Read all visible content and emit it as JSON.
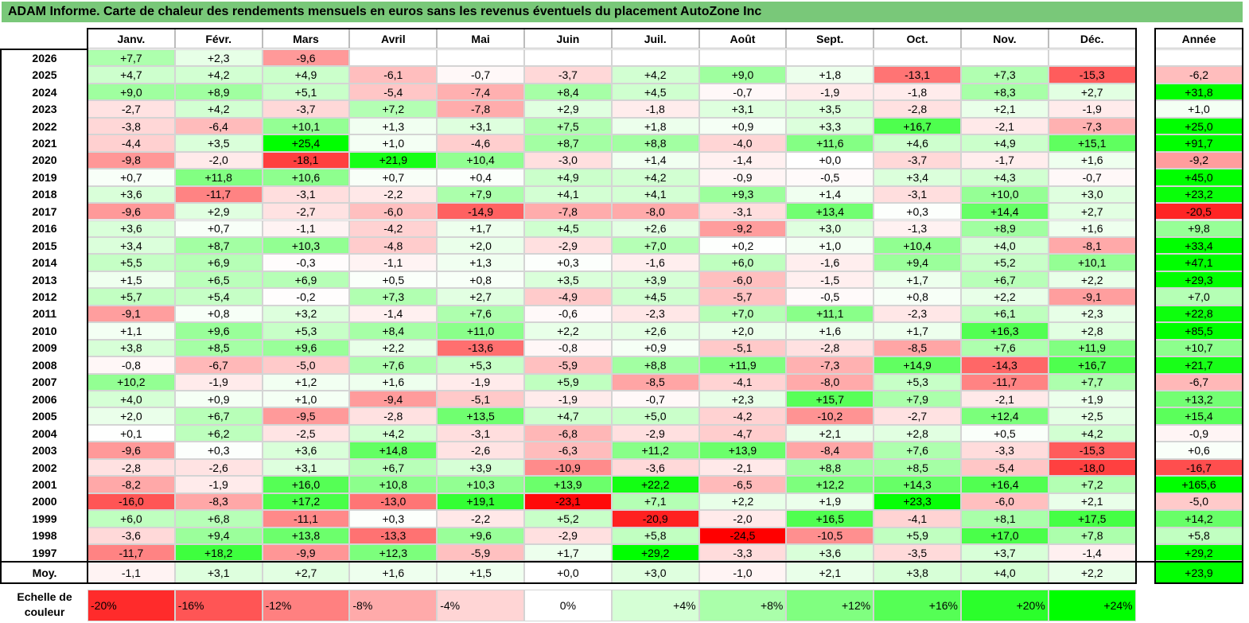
{
  "title": "ADAM Informe. Carte de chaleur des rendements mensuels en euros sans les revenus éventuels du placement AutoZone Inc",
  "chart_data": {
    "type": "heatmap",
    "title": "ADAM Informe. Carte de chaleur des rendements mensuels en euros sans les revenus éventuels du placement AutoZone Inc",
    "columns": [
      "Janv.",
      "Févr.",
      "Mars",
      "Avril",
      "Mai",
      "Juin",
      "Juil.",
      "Août",
      "Sept.",
      "Oct.",
      "Nov.",
      "Déc."
    ],
    "year_header": "Année",
    "rows": [
      {
        "label": "2026",
        "values": [
          "+7,7",
          "+2,3",
          "-9,6",
          "",
          "",
          "",
          "",
          "",
          "",
          "",
          "",
          ""
        ],
        "year": ""
      },
      {
        "label": "2025",
        "values": [
          "+4,7",
          "+4,2",
          "+4,9",
          "-6,1",
          "-0,7",
          "-3,7",
          "+4,2",
          "+9,0",
          "+1,8",
          "-13,1",
          "+7,3",
          "-15,3"
        ],
        "year": "-6,2"
      },
      {
        "label": "2024",
        "values": [
          "+9,0",
          "+8,9",
          "+5,1",
          "-5,4",
          "-7,4",
          "+8,4",
          "+4,5",
          "-0,7",
          "-1,9",
          "-1,8",
          "+8,3",
          "+2,7"
        ],
        "year": "+31,8"
      },
      {
        "label": "2023",
        "values": [
          "-2,7",
          "+4,2",
          "-3,7",
          "+7,2",
          "-7,8",
          "+2,9",
          "-1,8",
          "+3,1",
          "+3,5",
          "-2,8",
          "+2,1",
          "-1,9"
        ],
        "year": "+1,0"
      },
      {
        "label": "2022",
        "values": [
          "-3,8",
          "-6,4",
          "+10,1",
          "+1,3",
          "+3,1",
          "+7,5",
          "+1,8",
          "+0,9",
          "+3,3",
          "+16,7",
          "-2,1",
          "-7,3"
        ],
        "year": "+25,0"
      },
      {
        "label": "2021",
        "values": [
          "-4,4",
          "+3,5",
          "+25,4",
          "+1,0",
          "-4,6",
          "+8,7",
          "+8,8",
          "-4,0",
          "+11,6",
          "+4,6",
          "+4,9",
          "+15,1"
        ],
        "year": "+91,7"
      },
      {
        "label": "2020",
        "values": [
          "-9,8",
          "-2,0",
          "-18,1",
          "+21,9",
          "+10,4",
          "-3,0",
          "+1,4",
          "-1,4",
          "+0,0",
          "-3,7",
          "-1,7",
          "+1,6"
        ],
        "year": "-9,2"
      },
      {
        "label": "2019",
        "values": [
          "+0,7",
          "+11,8",
          "+10,6",
          "+0,7",
          "+0,4",
          "+4,9",
          "+4,2",
          "-0,9",
          "-0,5",
          "+3,4",
          "+4,3",
          "-0,7"
        ],
        "year": "+45,0"
      },
      {
        "label": "2018",
        "values": [
          "+3,6",
          "-11,7",
          "-3,1",
          "-2,2",
          "+7,9",
          "+4,1",
          "+4,1",
          "+9,3",
          "+1,4",
          "-3,1",
          "+10,0",
          "+3,0"
        ],
        "year": "+23,2"
      },
      {
        "label": "2017",
        "values": [
          "-9,6",
          "+2,9",
          "-2,7",
          "-6,0",
          "-14,9",
          "-7,8",
          "-8,0",
          "-3,1",
          "+13,4",
          "+0,3",
          "+14,4",
          "+2,7"
        ],
        "year": "-20,5"
      },
      {
        "label": "2016",
        "values": [
          "+3,6",
          "+0,7",
          "-1,1",
          "-4,2",
          "+1,7",
          "+4,5",
          "+2,6",
          "-9,2",
          "+3,0",
          "-1,3",
          "+8,9",
          "+1,6"
        ],
        "year": "+9,8"
      },
      {
        "label": "2015",
        "values": [
          "+3,4",
          "+8,7",
          "+10,3",
          "-4,8",
          "+2,0",
          "-2,9",
          "+7,0",
          "+0,2",
          "+1,0",
          "+10,4",
          "+4,0",
          "-8,1"
        ],
        "year": "+33,4"
      },
      {
        "label": "2014",
        "values": [
          "+5,5",
          "+6,9",
          "-0,3",
          "-1,1",
          "+1,3",
          "+0,3",
          "-1,6",
          "+6,0",
          "-1,6",
          "+9,4",
          "+5,2",
          "+10,1"
        ],
        "year": "+47,1"
      },
      {
        "label": "2013",
        "values": [
          "+1,5",
          "+6,5",
          "+6,9",
          "+0,5",
          "+0,8",
          "+3,5",
          "+3,9",
          "-6,0",
          "-1,5",
          "+1,7",
          "+6,7",
          "+2,2"
        ],
        "year": "+29,3"
      },
      {
        "label": "2012",
        "values": [
          "+5,7",
          "+5,4",
          "-0,2",
          "+7,3",
          "+2,7",
          "-4,9",
          "+4,5",
          "-5,7",
          "-0,5",
          "+0,8",
          "+2,2",
          "-9,1"
        ],
        "year": "+7,0"
      },
      {
        "label": "2011",
        "values": [
          "-9,1",
          "+0,8",
          "+3,2",
          "-1,4",
          "+7,6",
          "-0,6",
          "-2,3",
          "+7,0",
          "+11,1",
          "-2,3",
          "+6,1",
          "+2,3"
        ],
        "year": "+22,8"
      },
      {
        "label": "2010",
        "values": [
          "+1,1",
          "+9,6",
          "+5,3",
          "+8,4",
          "+11,0",
          "+2,2",
          "+2,6",
          "+2,0",
          "+1,6",
          "+1,7",
          "+16,3",
          "+2,8"
        ],
        "year": "+85,5"
      },
      {
        "label": "2009",
        "values": [
          "+3,8",
          "+8,5",
          "+9,6",
          "+2,2",
          "-13,6",
          "-0,8",
          "+0,9",
          "-5,1",
          "-2,8",
          "-8,5",
          "+7,6",
          "+11,9"
        ],
        "year": "+10,7"
      },
      {
        "label": "2008",
        "values": [
          "-0,8",
          "-6,7",
          "-5,0",
          "+7,6",
          "+5,3",
          "-5,9",
          "+8,8",
          "+11,9",
          "-7,3",
          "+14,9",
          "-14,3",
          "+16,7"
        ],
        "year": "+21,7"
      },
      {
        "label": "2007",
        "values": [
          "+10,2",
          "-1,9",
          "+1,2",
          "+1,6",
          "-1,9",
          "+5,9",
          "-8,5",
          "-4,1",
          "-8,0",
          "+5,3",
          "-11,7",
          "+7,7"
        ],
        "year": "-6,7"
      },
      {
        "label": "2006",
        "values": [
          "+4,0",
          "+0,9",
          "+1,0",
          "-9,4",
          "-5,1",
          "-1,9",
          "-0,7",
          "+2,3",
          "+15,7",
          "+7,9",
          "-2,1",
          "+1,9"
        ],
        "year": "+13,2"
      },
      {
        "label": "2005",
        "values": [
          "+2,0",
          "+6,7",
          "-9,5",
          "-2,8",
          "+13,5",
          "+4,7",
          "+5,0",
          "-4,2",
          "-10,2",
          "-2,7",
          "+12,4",
          "+2,5"
        ],
        "year": "+15,4"
      },
      {
        "label": "2004",
        "values": [
          "+0,1",
          "+6,2",
          "-2,5",
          "+4,2",
          "-3,1",
          "-6,8",
          "-2,9",
          "-4,7",
          "+2,1",
          "+2,8",
          "+0,5",
          "+4,2"
        ],
        "year": "-0,9"
      },
      {
        "label": "2003",
        "values": [
          "-9,6",
          "+0,3",
          "+3,6",
          "+14,8",
          "-2,6",
          "-6,3",
          "+11,2",
          "+13,9",
          "-8,4",
          "+7,6",
          "-3,3",
          "-15,3"
        ],
        "year": "+0,6"
      },
      {
        "label": "2002",
        "values": [
          "-2,8",
          "-2,6",
          "+3,1",
          "+6,7",
          "+3,9",
          "-10,9",
          "-3,6",
          "-2,1",
          "+8,8",
          "+8,5",
          "-5,4",
          "-18,0"
        ],
        "year": "-16,7"
      },
      {
        "label": "2001",
        "values": [
          "-8,2",
          "-1,9",
          "+16,0",
          "+10,8",
          "+10,3",
          "+13,9",
          "+22,2",
          "-6,5",
          "+12,2",
          "+14,3",
          "+16,4",
          "+7,2"
        ],
        "year": "+165,6"
      },
      {
        "label": "2000",
        "values": [
          "-16,0",
          "-8,3",
          "+17,2",
          "-13,0",
          "+19,1",
          "-23,1",
          "+7,1",
          "+2,2",
          "+1,9",
          "+23,3",
          "-6,0",
          "+2,1"
        ],
        "year": "-5,0"
      },
      {
        "label": "1999",
        "values": [
          "+6,0",
          "+6,8",
          "-11,1",
          "+0,3",
          "-2,2",
          "+5,2",
          "-20,9",
          "-2,0",
          "+16,5",
          "-4,1",
          "+8,1",
          "+17,5"
        ],
        "year": "+14,2"
      },
      {
        "label": "1998",
        "values": [
          "-3,6",
          "+9,4",
          "+13,8",
          "-13,3",
          "+9,6",
          "-2,9",
          "+5,8",
          "-24,5",
          "-10,5",
          "+5,9",
          "+17,0",
          "+7,8"
        ],
        "year": "+5,8"
      },
      {
        "label": "1997",
        "values": [
          "-11,7",
          "+18,2",
          "-9,9",
          "+12,3",
          "-5,9",
          "+1,7",
          "+29,2",
          "-3,3",
          "+3,6",
          "-3,5",
          "+3,7",
          "-1,4"
        ],
        "year": "+29,2"
      }
    ],
    "average": {
      "label": "Moy.",
      "values": [
        "-1,1",
        "+3,1",
        "+2,7",
        "+1,6",
        "+1,5",
        "+0,0",
        "+3,0",
        "-1,0",
        "+2,1",
        "+3,8",
        "+4,0",
        "+2,2"
      ],
      "year": "+23,9"
    },
    "scale": {
      "label": "Echelle de couleur",
      "steps": [
        "-20%",
        "-16%",
        "-12%",
        "-8%",
        "-4%",
        "0%",
        "+4%",
        "+8%",
        "+12%",
        "+16%",
        "+20%",
        "+24%"
      ]
    },
    "colors": {
      "negative": "#ff0000",
      "neutral": "#ffffff",
      "positive": "#00ff00",
      "title_bg": "#79c879"
    }
  }
}
